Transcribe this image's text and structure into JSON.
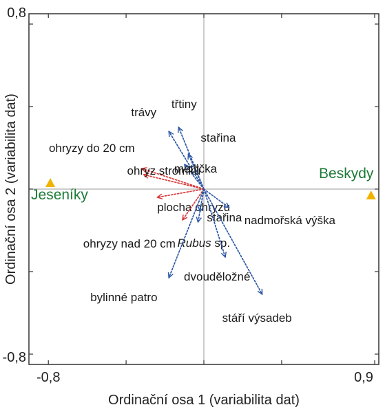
{
  "chart_data": {
    "type": "scatter",
    "subtype": "biplot",
    "xlabel": "Ordinační osa 1 (variabilita dat)",
    "ylabel": "Ordinační osa 2 (variabilita dat)",
    "xlim": [
      -0.9,
      0.9
    ],
    "ylim": [
      -0.85,
      0.85
    ],
    "x_ticks": [
      {
        "value": -0.8,
        "label": "-0,8"
      },
      {
        "value": 0.9,
        "label": "0,9"
      }
    ],
    "y_ticks": [
      {
        "value": 0.8,
        "label": "0,8"
      },
      {
        "value": -0.8,
        "label": "-0,8"
      }
    ],
    "grid": false,
    "zero_lines": true,
    "colors": {
      "blue_arrow": "#2e58a6",
      "red_arrow": "#d93a3a",
      "site_marker": "#f0b400",
      "site_label": "#1d7a36",
      "zero_line": "#9a9a9a"
    },
    "arrows": [
      {
        "name": "trávy",
        "x": -0.18,
        "y": 0.28,
        "color": "blue"
      },
      {
        "name": "třtiny",
        "x": -0.13,
        "y": 0.3,
        "color": "blue"
      },
      {
        "name": "stařina",
        "x": -0.08,
        "y": 0.17,
        "color": "blue"
      },
      {
        "name": "metlička",
        "x": -0.1,
        "y": 0.12,
        "color": "blue"
      },
      {
        "name": "ohryzy do 20 cm",
        "x": -0.32,
        "y": 0.1,
        "color": "red"
      },
      {
        "name": "ohryz stromků",
        "x": -0.31,
        "y": 0.07,
        "color": "red"
      },
      {
        "name": "plocha ohryzu",
        "x": -0.24,
        "y": -0.04,
        "color": "red"
      },
      {
        "name": "ohryzy nad 20 cm",
        "x": -0.11,
        "y": -0.15,
        "color": "red"
      },
      {
        "name": "stařina",
        "x": -0.02,
        "y": -0.11,
        "color": "blue"
      },
      {
        "name": "Rubus sp.",
        "x": -0.03,
        "y": -0.16,
        "color": "blue"
      },
      {
        "name": "nadmořská výška",
        "x": 0.13,
        "y": -0.09,
        "color": "blue"
      },
      {
        "name": "dvouděložné",
        "x": 0.11,
        "y": -0.33,
        "color": "blue"
      },
      {
        "name": "bylinné patro",
        "x": -0.18,
        "y": -0.43,
        "color": "blue"
      },
      {
        "name": "stáří výsadeb",
        "x": 0.3,
        "y": -0.51,
        "color": "blue"
      }
    ],
    "sites": [
      {
        "name": "Jeseníky",
        "x": -0.79,
        "y": 0.03
      },
      {
        "name": "Beskydy",
        "x": 0.86,
        "y": -0.03
      }
    ]
  }
}
